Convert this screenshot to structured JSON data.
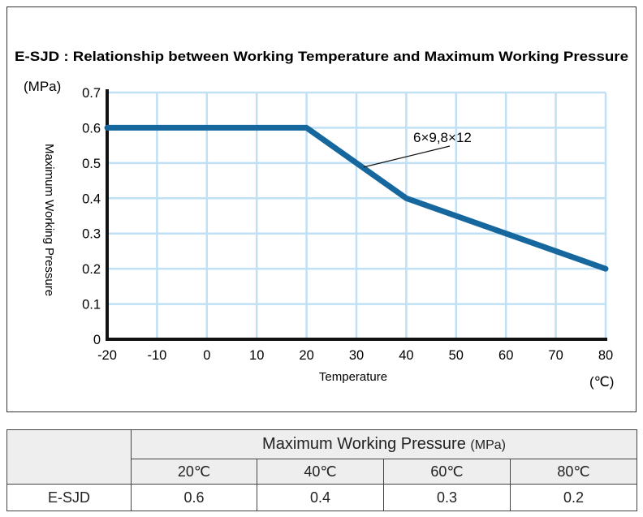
{
  "chart_data": {
    "type": "line",
    "title": "E-SJD : Relationship between Working Temperature and Maximum Working Pressure",
    "xlabel": "Temperature",
    "ylabel": "Maximum Working Pressure",
    "x_unit": "(℃)",
    "y_unit": "(MPa)",
    "xlim": [
      -20,
      80
    ],
    "ylim": [
      0,
      0.7
    ],
    "x_ticks": [
      "-20",
      "-10",
      "0",
      "10",
      "20",
      "30",
      "40",
      "50",
      "60",
      "70",
      "80"
    ],
    "y_ticks": [
      "0",
      "0.1",
      "0.2",
      "0.3",
      "0.4",
      "0.5",
      "0.6",
      "0.7"
    ],
    "grid": true,
    "series": [
      {
        "name": "6×9,8×12",
        "x": [
          -20,
          20,
          40,
          80
        ],
        "y": [
          0.6,
          0.6,
          0.4,
          0.2
        ]
      }
    ],
    "annotation": {
      "text": "6×9,8×12",
      "points_to": {
        "x": 30,
        "y": 0.5
      }
    },
    "colors": {
      "line": "#15679e",
      "grid": "#bfe0f5",
      "axis": "#111111"
    }
  },
  "table": {
    "main_header": "Maximum Working Pressure",
    "unit": "(MPa)",
    "temperatures": [
      "20℃",
      "40℃",
      "60℃",
      "80℃"
    ],
    "rows": [
      {
        "label": "E-SJD",
        "values": [
          "0.6",
          "0.4",
          "0.3",
          "0.2"
        ]
      }
    ]
  }
}
